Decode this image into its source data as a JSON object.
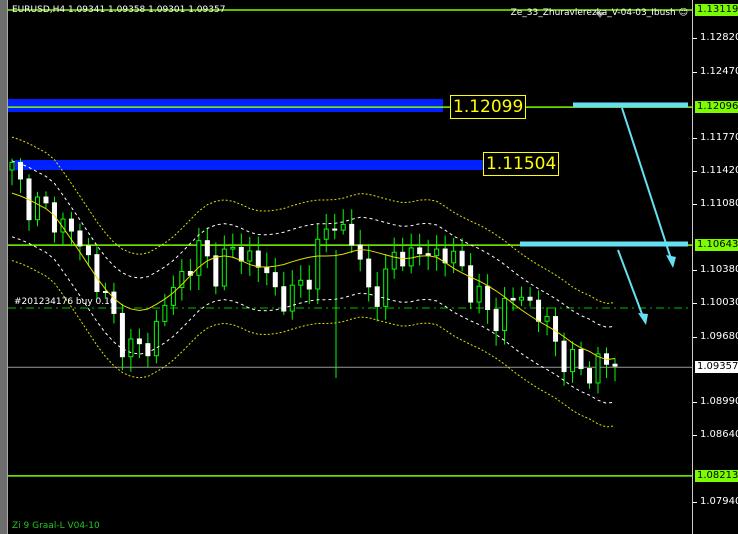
{
  "header": {
    "symbol_line": "EURUSD,H4  1.09341 1.09358 1.09301 1.09357",
    "expert_name": "Ze_33_Zhuravlerezka_V-04-03_Ibush",
    "expert_icon": "smiley-icon"
  },
  "order_label": "#201234176 buy 0.10",
  "footer_indicator": "Zi 9 Graal-L V04-10",
  "levels": {
    "upper_box": "1.12099",
    "lower_box": "1.11504"
  },
  "price_scale": {
    "ticks": [
      "1.12820",
      "1.12470",
      "1.11770",
      "1.11420",
      "1.11080",
      "1.10380",
      "1.10030",
      "1.09680",
      "1.08990",
      "1.08640",
      "1.07940"
    ],
    "tags": [
      {
        "value": "1.13119",
        "kind": "line"
      },
      {
        "value": "1.12096",
        "kind": "line"
      },
      {
        "value": "1.10643",
        "kind": "line"
      },
      {
        "value": "1.09357",
        "kind": "current"
      },
      {
        "value": "1.08213",
        "kind": "line"
      }
    ]
  },
  "colors": {
    "level_line": "#7cfc00",
    "bull": "#00ff00",
    "bear": "#ffffff",
    "zone": "#0020ff",
    "trendline": "#66e0f0",
    "band_outer": "#e0e000",
    "band_inner": "#ffffff"
  },
  "chart_data": {
    "type": "candlestick",
    "symbol": "EURUSD",
    "timeframe": "H4",
    "ylim": [
      1.0759,
      1.1322
    ],
    "closes": [
      1.11434,
      1.11118,
      1.11013,
      1.10908,
      1.1075,
      1.10486,
      1.10065,
      1.09697,
      1.09486,
      1.09644,
      1.10065,
      1.10329,
      1.10592,
      1.10381,
      1.10539,
      1.10592,
      1.10434,
      1.10171,
      1.10065,
      1.10276,
      1.10697,
      1.10908,
      1.10697,
      1.10171,
      1.10171,
      1.10644,
      1.10486,
      1.10592,
      1.10539,
      1.10434,
      1.10118,
      1.09855,
      1.10013,
      1.10118,
      1.0996,
      1.09644,
      1.09433,
      1.09276,
      1.09433,
      1.09357
    ]
  }
}
